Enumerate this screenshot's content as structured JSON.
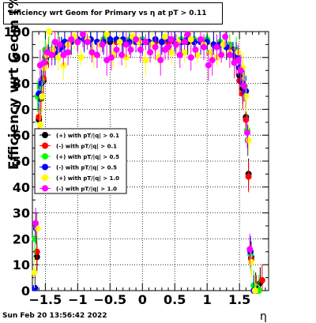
{
  "title": "Efficiency wrt  Geom for Primary vs   η at pT > 0.11",
  "footer": "Sun Feb 20 13:56:42 2022",
  "colors": {
    "black": "#000000",
    "red": "#ff0000",
    "green": "#00ff00",
    "blue": "#0000ff",
    "yellow": "#ffff00",
    "magenta": "#ff00ff"
  },
  "chart_data": {
    "type": "scatter",
    "title": "Efficiency wrt  Geom for Primary vs   η at pT > 0.11",
    "xlabel": "η",
    "ylabel": "Efficiency wrt  Geom (%)",
    "xlim": [
      -1.7,
      1.95
    ],
    "ylim": [
      0,
      100
    ],
    "x_ticks": [
      -1.5,
      -1,
      -0.5,
      0,
      0.5,
      1,
      1.5
    ],
    "x_tick_labels": [
      "−1.5",
      "−1",
      "−0.5",
      "0",
      "0.5",
      "1",
      "1.5"
    ],
    "y_ticks": [
      0,
      10,
      20,
      30,
      40,
      50,
      60,
      70,
      80,
      90,
      100
    ],
    "y_tick_labels": [
      "0",
      "10",
      "20",
      "30",
      "40",
      "50",
      "60",
      "70",
      "80",
      "90",
      "100"
    ],
    "grid": true,
    "legend_position": "left-middle",
    "series": [
      {
        "name": "(+) with pT/|q| > 0.1",
        "color": "#000000",
        "points": [
          [
            -1.63,
            13
          ],
          [
            -1.6,
            66
          ],
          [
            -1.57,
            74
          ],
          [
            -1.53,
            81
          ],
          [
            -1.5,
            90
          ],
          [
            -1.45,
            92
          ],
          [
            -1.4,
            92
          ],
          [
            -1.35,
            93
          ],
          [
            -1.3,
            94
          ],
          [
            -1.25,
            95
          ],
          [
            -1.2,
            96
          ],
          [
            -1.1,
            96
          ],
          [
            -1.0,
            97
          ],
          [
            -0.9,
            97
          ],
          [
            -0.8,
            97
          ],
          [
            -0.7,
            96
          ],
          [
            -0.6,
            96
          ],
          [
            -0.5,
            96
          ],
          [
            -0.4,
            96
          ],
          [
            -0.3,
            96
          ],
          [
            -0.2,
            96
          ],
          [
            -0.1,
            96
          ],
          [
            0.0,
            96
          ],
          [
            0.1,
            96
          ],
          [
            0.2,
            96
          ],
          [
            0.3,
            96
          ],
          [
            0.4,
            96
          ],
          [
            0.5,
            96
          ],
          [
            0.6,
            96
          ],
          [
            0.7,
            96
          ],
          [
            0.8,
            96
          ],
          [
            0.9,
            96
          ],
          [
            1.0,
            96
          ],
          [
            1.1,
            95
          ],
          [
            1.2,
            95
          ],
          [
            1.3,
            94
          ],
          [
            1.4,
            93
          ],
          [
            1.45,
            90
          ],
          [
            1.5,
            83
          ],
          [
            1.55,
            78
          ],
          [
            1.6,
            67
          ],
          [
            1.64,
            45
          ],
          [
            1.68,
            13
          ],
          [
            1.75,
            1
          ],
          [
            1.82,
            3
          ]
        ]
      },
      {
        "name": "(-) with pT/|q| > 0.1",
        "color": "#ff0000",
        "points": [
          [
            -1.63,
            15
          ],
          [
            -1.6,
            67
          ],
          [
            -1.57,
            76
          ],
          [
            -1.53,
            82
          ],
          [
            -1.5,
            88
          ],
          [
            -1.45,
            91
          ],
          [
            -1.4,
            92
          ],
          [
            -1.3,
            93
          ],
          [
            -1.2,
            95
          ],
          [
            -1.1,
            96
          ],
          [
            -1.0,
            96
          ],
          [
            -0.8,
            97
          ],
          [
            -0.6,
            96
          ],
          [
            -0.4,
            96
          ],
          [
            -0.2,
            96
          ],
          [
            0.0,
            96
          ],
          [
            0.2,
            96
          ],
          [
            0.4,
            96
          ],
          [
            0.6,
            96
          ],
          [
            0.8,
            96
          ],
          [
            1.0,
            96
          ],
          [
            1.2,
            95
          ],
          [
            1.35,
            93
          ],
          [
            1.45,
            89
          ],
          [
            1.5,
            81
          ],
          [
            1.55,
            76
          ],
          [
            1.6,
            66
          ],
          [
            1.64,
            44
          ],
          [
            1.68,
            12
          ],
          [
            1.76,
            0
          ],
          [
            1.85,
            4
          ]
        ]
      },
      {
        "name": "(+) with pT/|q| > 0.5",
        "color": "#00ff00",
        "points": [
          [
            -1.66,
            20
          ],
          [
            -1.62,
            75
          ],
          [
            -1.58,
            79
          ],
          [
            -1.54,
            87
          ],
          [
            -1.5,
            93
          ],
          [
            -1.45,
            93
          ],
          [
            -1.4,
            93
          ],
          [
            -1.3,
            95
          ],
          [
            -1.2,
            96
          ],
          [
            -1.1,
            96
          ],
          [
            -1.0,
            97
          ],
          [
            -0.8,
            97
          ],
          [
            -0.6,
            97
          ],
          [
            -0.4,
            97
          ],
          [
            -0.2,
            97
          ],
          [
            0.0,
            97
          ],
          [
            0.2,
            97
          ],
          [
            0.4,
            97
          ],
          [
            0.6,
            97
          ],
          [
            0.8,
            97
          ],
          [
            1.0,
            97
          ],
          [
            1.2,
            96
          ],
          [
            1.35,
            95
          ],
          [
            1.45,
            93
          ],
          [
            1.52,
            85
          ],
          [
            1.58,
            79
          ],
          [
            1.62,
            62
          ],
          [
            1.67,
            14
          ],
          [
            1.72,
            2
          ],
          [
            1.8,
            0
          ]
        ]
      },
      {
        "name": "(-) with pT/|q| > 0.5",
        "color": "#0000ff",
        "points": [
          [
            -1.66,
            1
          ],
          [
            -1.64,
            24
          ],
          [
            -1.6,
            76
          ],
          [
            -1.56,
            80
          ],
          [
            -1.52,
            86
          ],
          [
            -1.48,
            91
          ],
          [
            -1.45,
            92
          ],
          [
            -1.4,
            91
          ],
          [
            -1.35,
            92
          ],
          [
            -1.3,
            93
          ],
          [
            -1.25,
            94
          ],
          [
            -1.2,
            96
          ],
          [
            -1.1,
            96
          ],
          [
            -1.0,
            97
          ],
          [
            -0.9,
            97
          ],
          [
            -0.8,
            97
          ],
          [
            -0.7,
            96
          ],
          [
            -0.6,
            96
          ],
          [
            -0.5,
            97
          ],
          [
            -0.4,
            97
          ],
          [
            -0.3,
            97
          ],
          [
            -0.2,
            96
          ],
          [
            -0.1,
            96
          ],
          [
            0.0,
            96
          ],
          [
            0.1,
            96
          ],
          [
            0.2,
            97
          ],
          [
            0.3,
            96
          ],
          [
            0.4,
            97
          ],
          [
            0.5,
            96
          ],
          [
            0.6,
            96
          ],
          [
            0.7,
            97
          ],
          [
            0.8,
            96
          ],
          [
            0.9,
            96
          ],
          [
            1.0,
            96
          ],
          [
            1.1,
            95
          ],
          [
            1.2,
            95
          ],
          [
            1.3,
            94
          ],
          [
            1.4,
            92
          ],
          [
            1.45,
            91
          ],
          [
            1.5,
            86
          ],
          [
            1.55,
            80
          ],
          [
            1.6,
            77
          ],
          [
            1.63,
            58
          ],
          [
            1.67,
            15
          ],
          [
            1.72,
            0
          ]
        ]
      },
      {
        "name": "(+) with pT/|q| > 1.0",
        "color": "#ffff00",
        "points": [
          [
            -1.67,
            7
          ],
          [
            -1.62,
            24
          ],
          [
            -1.58,
            64
          ],
          [
            -1.55,
            75
          ],
          [
            -1.52,
            86
          ],
          [
            -1.48,
            91
          ],
          [
            -1.44,
            100
          ],
          [
            -1.38,
            93
          ],
          [
            -1.3,
            90
          ],
          [
            -1.22,
            87
          ],
          [
            -1.15,
            95
          ],
          [
            -1.05,
            98
          ],
          [
            -0.95,
            90
          ],
          [
            -0.85,
            97
          ],
          [
            -0.75,
            91
          ],
          [
            -0.65,
            95
          ],
          [
            -0.55,
            99
          ],
          [
            -0.45,
            91
          ],
          [
            -0.35,
            96
          ],
          [
            -0.25,
            90
          ],
          [
            -0.15,
            98
          ],
          [
            -0.05,
            96
          ],
          [
            0.05,
            89
          ],
          [
            0.15,
            95
          ],
          [
            0.25,
            90
          ],
          [
            0.35,
            98
          ],
          [
            0.45,
            92
          ],
          [
            0.55,
            96
          ],
          [
            0.65,
            92
          ],
          [
            0.75,
            97
          ],
          [
            0.85,
            91
          ],
          [
            0.95,
            95
          ],
          [
            1.05,
            92
          ],
          [
            1.15,
            90
          ],
          [
            1.25,
            95
          ],
          [
            1.35,
            92
          ],
          [
            1.42,
            88
          ],
          [
            1.48,
            92
          ],
          [
            1.55,
            86
          ],
          [
            1.6,
            75
          ],
          [
            1.64,
            58
          ],
          [
            1.68,
            11
          ],
          [
            1.74,
            0
          ]
        ]
      },
      {
        "name": "(-) with pT/|q| > 1.0",
        "color": "#ff00ff",
        "points": [
          [
            -1.65,
            26
          ],
          [
            -1.58,
            87
          ],
          [
            -1.52,
            88
          ],
          [
            -1.47,
            92
          ],
          [
            -1.4,
            91
          ],
          [
            -1.35,
            96
          ],
          [
            -1.28,
            95
          ],
          [
            -1.22,
            91
          ],
          [
            -1.15,
            92
          ],
          [
            -1.1,
            97
          ],
          [
            -1.0,
            96
          ],
          [
            -0.92,
            99
          ],
          [
            -0.85,
            96
          ],
          [
            -0.78,
            92
          ],
          [
            -0.7,
            91
          ],
          [
            -0.62,
            95
          ],
          [
            -0.55,
            89
          ],
          [
            -0.48,
            90
          ],
          [
            -0.4,
            93
          ],
          [
            -0.32,
            91
          ],
          [
            -0.25,
            95
          ],
          [
            -0.18,
            93
          ],
          [
            -0.1,
            97
          ],
          [
            -0.03,
            93
          ],
          [
            0.05,
            96
          ],
          [
            0.12,
            92
          ],
          [
            0.2,
            94
          ],
          [
            0.28,
            89
          ],
          [
            0.35,
            93
          ],
          [
            0.4,
            94
          ],
          [
            0.45,
            97
          ],
          [
            0.52,
            95
          ],
          [
            0.58,
            91
          ],
          [
            0.65,
            96
          ],
          [
            0.7,
            99
          ],
          [
            0.75,
            90
          ],
          [
            0.82,
            93
          ],
          [
            0.9,
            97
          ],
          [
            0.95,
            94
          ],
          [
            1.02,
            87
          ],
          [
            1.08,
            89
          ],
          [
            1.15,
            94
          ],
          [
            1.22,
            91
          ],
          [
            1.28,
            98
          ],
          [
            1.35,
            91
          ],
          [
            1.42,
            88
          ],
          [
            1.48,
            89
          ],
          [
            1.52,
            85
          ],
          [
            1.57,
            79
          ],
          [
            1.62,
            61
          ],
          [
            1.66,
            16
          ]
        ]
      }
    ]
  }
}
